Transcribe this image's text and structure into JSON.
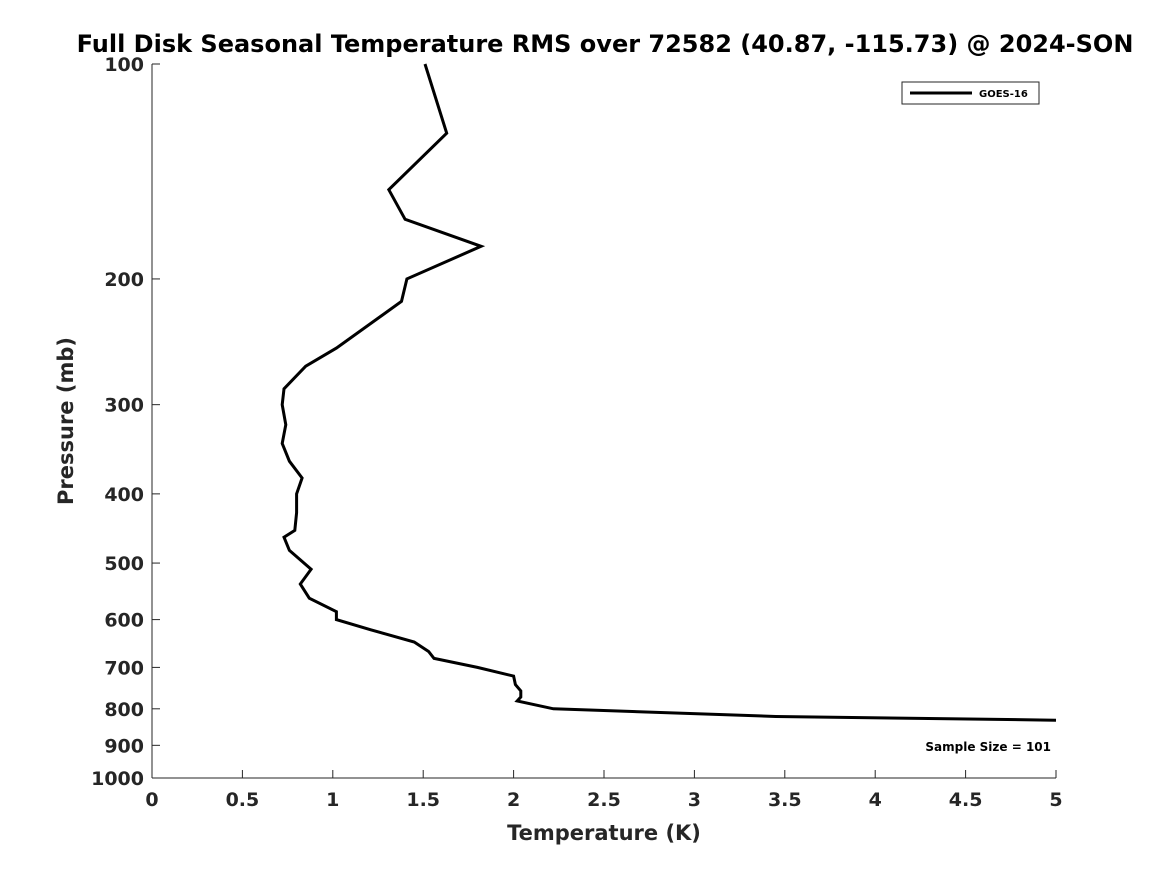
{
  "chart_data": {
    "type": "line",
    "title": "Full Disk Seasonal Temperature RMS over 72582 (40.87, -115.73) @ 2024-SON",
    "xlabel": "Temperature (K)",
    "ylabel": "Pressure (mb)",
    "xlim": [
      0,
      5
    ],
    "ylim": [
      100,
      1000
    ],
    "y_scale": "log",
    "y_reversed": true,
    "x_ticks": [
      "0",
      "0.5",
      "1",
      "1.5",
      "2",
      "2.5",
      "3",
      "3.5",
      "4",
      "4.5",
      "5"
    ],
    "y_ticks": [
      "100",
      "200",
      "300",
      "400",
      "500",
      "600",
      "700",
      "800",
      "900",
      "1000"
    ],
    "grid": false,
    "legend_position": "top-right",
    "annotation": "Sample Size = 101",
    "line_color": "#000000",
    "series": [
      {
        "name": "GOES-16",
        "points": [
          [
            1.51,
            100
          ],
          [
            1.63,
            125
          ],
          [
            1.31,
            150
          ],
          [
            1.4,
            165
          ],
          [
            1.82,
            180
          ],
          [
            1.41,
            200
          ],
          [
            1.38,
            215
          ],
          [
            1.02,
            250
          ],
          [
            0.85,
            265
          ],
          [
            0.73,
            285
          ],
          [
            0.72,
            300
          ],
          [
            0.74,
            320
          ],
          [
            0.72,
            340
          ],
          [
            0.76,
            360
          ],
          [
            0.83,
            380
          ],
          [
            0.8,
            400
          ],
          [
            0.8,
            425
          ],
          [
            0.79,
            450
          ],
          [
            0.73,
            460
          ],
          [
            0.76,
            480
          ],
          [
            0.88,
            510
          ],
          [
            0.82,
            535
          ],
          [
            0.87,
            560
          ],
          [
            1.02,
            585
          ],
          [
            1.02,
            600
          ],
          [
            1.21,
            620
          ],
          [
            1.45,
            645
          ],
          [
            1.53,
            665
          ],
          [
            1.56,
            680
          ],
          [
            1.8,
            700
          ],
          [
            2.0,
            720
          ],
          [
            2.01,
            740
          ],
          [
            2.04,
            755
          ],
          [
            2.04,
            770
          ],
          [
            2.02,
            780
          ],
          [
            2.22,
            800
          ],
          [
            3.45,
            820
          ],
          [
            5.0,
            830
          ]
        ]
      }
    ]
  }
}
